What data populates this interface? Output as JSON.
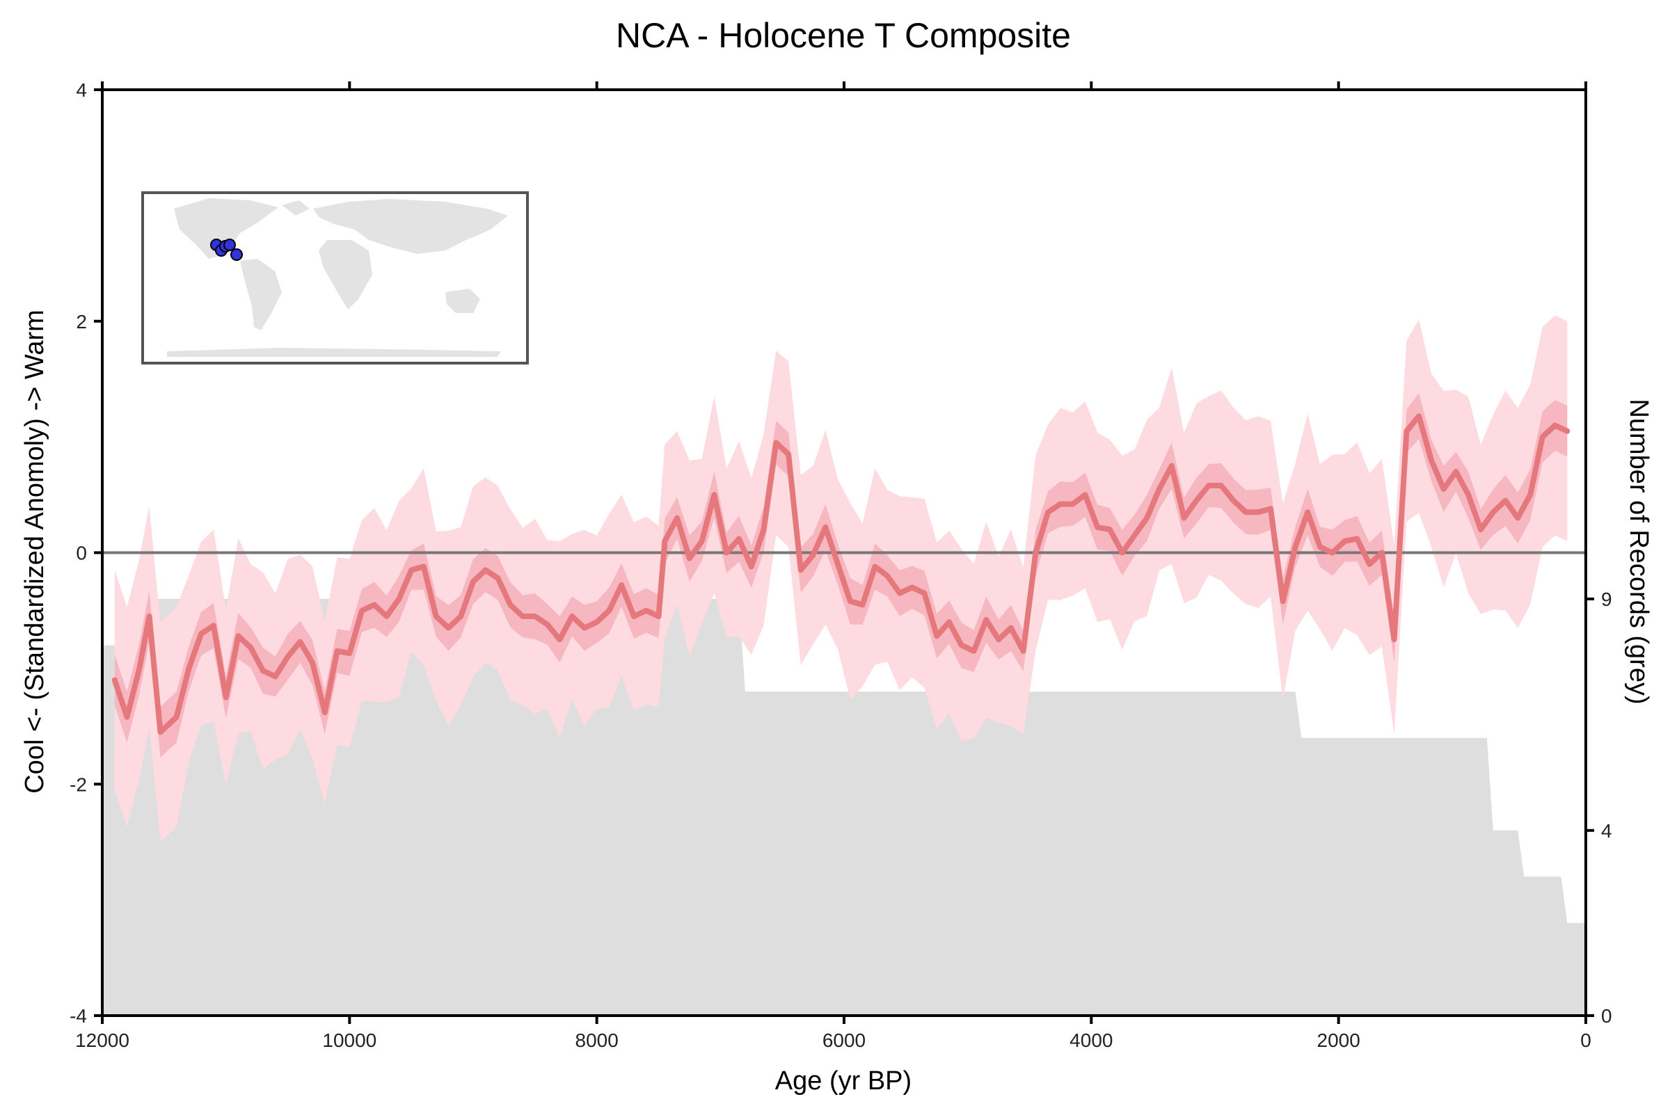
{
  "chart_data": {
    "type": "line",
    "title": "NCA - Holocene T Composite",
    "xlabel": "Age (yr BP)",
    "ylabel": "Cool <- (Standardized Anomoly) -> Warm",
    "y2label": "Number of Records (grey)",
    "xlim": [
      12000,
      0
    ],
    "ylim": [
      -4,
      4
    ],
    "y2lim": [
      0,
      20
    ],
    "x_ticks": [
      12000,
      10000,
      8000,
      6000,
      4000,
      2000,
      0
    ],
    "x_tick_labels": [
      "12000",
      "10000",
      "8000",
      "6000",
      "4000",
      "2000",
      "0"
    ],
    "y_ticks": [
      4,
      2,
      0,
      -2,
      -4
    ],
    "y_tick_labels": [
      "4",
      "2",
      "0",
      "-2",
      "-4"
    ],
    "y2_ticks": [
      9,
      4,
      0
    ],
    "y2_tick_labels": [
      "9",
      "4",
      "0"
    ],
    "grid": false,
    "zero_line": true,
    "colors": {
      "median_line": "#e5787c",
      "band_inner": "#f7b7c0",
      "band_outer": "#fddbe0",
      "records_fill": "#dedede",
      "zero_line": "#777777",
      "inset_dots": "#3333dd"
    },
    "series": [
      {
        "values": [
          [
            11900,
            -1.1
          ],
          [
            11800,
            -1.42
          ],
          [
            11700,
            -1.0
          ],
          [
            11620,
            -0.55
          ],
          [
            11530,
            -1.55
          ],
          [
            11400,
            -1.42
          ],
          [
            11300,
            -1.0
          ],
          [
            11200,
            -0.7
          ],
          [
            11100,
            -0.63
          ],
          [
            11000,
            -1.25
          ],
          [
            10900,
            -0.72
          ],
          [
            10800,
            -0.82
          ],
          [
            10700,
            -1.02
          ],
          [
            10600,
            -1.07
          ],
          [
            10500,
            -0.9
          ],
          [
            10400,
            -0.77
          ],
          [
            10300,
            -0.95
          ],
          [
            10200,
            -1.38
          ],
          [
            10100,
            -0.85
          ],
          [
            10000,
            -0.87
          ],
          [
            9900,
            -0.5
          ],
          [
            9800,
            -0.45
          ],
          [
            9700,
            -0.55
          ],
          [
            9600,
            -0.4
          ],
          [
            9500,
            -0.15
          ],
          [
            9400,
            -0.12
          ],
          [
            9300,
            -0.55
          ],
          [
            9200,
            -0.65
          ],
          [
            9100,
            -0.55
          ],
          [
            9000,
            -0.25
          ],
          [
            8900,
            -0.15
          ],
          [
            8800,
            -0.22
          ],
          [
            8700,
            -0.45
          ],
          [
            8600,
            -0.55
          ],
          [
            8500,
            -0.55
          ],
          [
            8400,
            -0.62
          ],
          [
            8300,
            -0.75
          ],
          [
            8200,
            -0.55
          ],
          [
            8100,
            -0.65
          ],
          [
            8000,
            -0.6
          ],
          [
            7900,
            -0.5
          ],
          [
            7800,
            -0.28
          ],
          [
            7700,
            -0.55
          ],
          [
            7600,
            -0.5
          ],
          [
            7500,
            -0.55
          ],
          [
            7450,
            0.1
          ],
          [
            7350,
            0.3
          ],
          [
            7250,
            -0.05
          ],
          [
            7150,
            0.1
          ],
          [
            7050,
            0.5
          ],
          [
            6950,
            0.0
          ],
          [
            6850,
            0.12
          ],
          [
            6750,
            -0.12
          ],
          [
            6650,
            0.2
          ],
          [
            6550,
            0.95
          ],
          [
            6450,
            0.85
          ],
          [
            6350,
            -0.15
          ],
          [
            6250,
            -0.02
          ],
          [
            6150,
            0.22
          ],
          [
            6050,
            -0.1
          ],
          [
            5950,
            -0.42
          ],
          [
            5850,
            -0.45
          ],
          [
            5750,
            -0.12
          ],
          [
            5650,
            -0.2
          ],
          [
            5550,
            -0.35
          ],
          [
            5450,
            -0.3
          ],
          [
            5350,
            -0.35
          ],
          [
            5250,
            -0.72
          ],
          [
            5150,
            -0.6
          ],
          [
            5050,
            -0.8
          ],
          [
            4950,
            -0.85
          ],
          [
            4850,
            -0.58
          ],
          [
            4750,
            -0.75
          ],
          [
            4650,
            -0.65
          ],
          [
            4550,
            -0.85
          ],
          [
            4450,
            0.0
          ],
          [
            4350,
            0.35
          ],
          [
            4250,
            0.42
          ],
          [
            4150,
            0.42
          ],
          [
            4050,
            0.5
          ],
          [
            3950,
            0.22
          ],
          [
            3850,
            0.2
          ],
          [
            3750,
            0.0
          ],
          [
            3650,
            0.15
          ],
          [
            3550,
            0.3
          ],
          [
            3450,
            0.55
          ],
          [
            3350,
            0.75
          ],
          [
            3250,
            0.3
          ],
          [
            3150,
            0.45
          ],
          [
            3050,
            0.58
          ],
          [
            2950,
            0.58
          ],
          [
            2850,
            0.45
          ],
          [
            2750,
            0.35
          ],
          [
            2650,
            0.35
          ],
          [
            2550,
            0.38
          ],
          [
            2450,
            -0.42
          ],
          [
            2350,
            0.05
          ],
          [
            2250,
            0.35
          ],
          [
            2150,
            0.05
          ],
          [
            2050,
            0.0
          ],
          [
            1950,
            0.1
          ],
          [
            1850,
            0.12
          ],
          [
            1750,
            -0.1
          ],
          [
            1650,
            0.0
          ],
          [
            1550,
            -0.75
          ],
          [
            1450,
            1.05
          ],
          [
            1350,
            1.18
          ],
          [
            1250,
            0.8
          ],
          [
            1150,
            0.55
          ],
          [
            1050,
            0.7
          ],
          [
            950,
            0.5
          ],
          [
            850,
            0.2
          ],
          [
            750,
            0.35
          ],
          [
            650,
            0.45
          ],
          [
            550,
            0.3
          ],
          [
            450,
            0.5
          ],
          [
            350,
            1.0
          ],
          [
            250,
            1.1
          ],
          [
            150,
            1.05
          ]
        ]
      }
    ],
    "records": [
      [
        12000,
        8
      ],
      [
        11600,
        8
      ],
      [
        11550,
        9
      ],
      [
        6850,
        9
      ],
      [
        6800,
        7
      ],
      [
        2350,
        7
      ],
      [
        2300,
        6
      ],
      [
        800,
        6
      ],
      [
        750,
        4
      ],
      [
        550,
        4
      ],
      [
        500,
        3
      ],
      [
        200,
        3
      ],
      [
        150,
        2
      ],
      [
        0,
        2
      ]
    ]
  }
}
